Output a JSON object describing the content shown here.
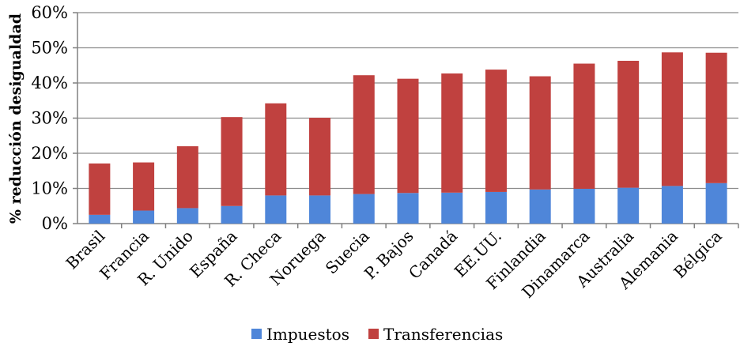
{
  "chart_data": {
    "type": "bar",
    "stacked": true,
    "ylabel": "% reducción desigualdad",
    "xlabel": "",
    "ylim": [
      0,
      60
    ],
    "yticks": [
      0,
      10,
      20,
      30,
      40,
      50,
      60
    ],
    "ytick_labels": [
      "0%",
      "10%",
      "20%",
      "30%",
      "40%",
      "50%",
      "60%"
    ],
    "grid": true,
    "legend_position": "bottom",
    "categories": [
      "Brasil",
      "Francia",
      "R. Unido",
      "España",
      "R. Checa",
      "Noruega",
      "Suecia",
      "P. Bajos",
      "Canadá",
      "EE.UU.",
      "Finlandia",
      "Dinamarca",
      "Australia",
      "Alemania",
      "Bélgica"
    ],
    "series": [
      {
        "name": "Impuestos",
        "color": "#4F86D9",
        "values": [
          2.5,
          3.7,
          4.4,
          5.0,
          8.0,
          8.0,
          8.4,
          8.7,
          8.8,
          9.0,
          9.7,
          9.9,
          10.2,
          10.7,
          11.5
        ]
      },
      {
        "name": "Transferencias",
        "color": "#C0413F",
        "values": [
          14.6,
          13.7,
          17.6,
          25.3,
          26.2,
          22.1,
          33.8,
          32.5,
          33.9,
          34.8,
          32.2,
          35.6,
          36.1,
          38.0,
          37.1
        ]
      }
    ]
  }
}
